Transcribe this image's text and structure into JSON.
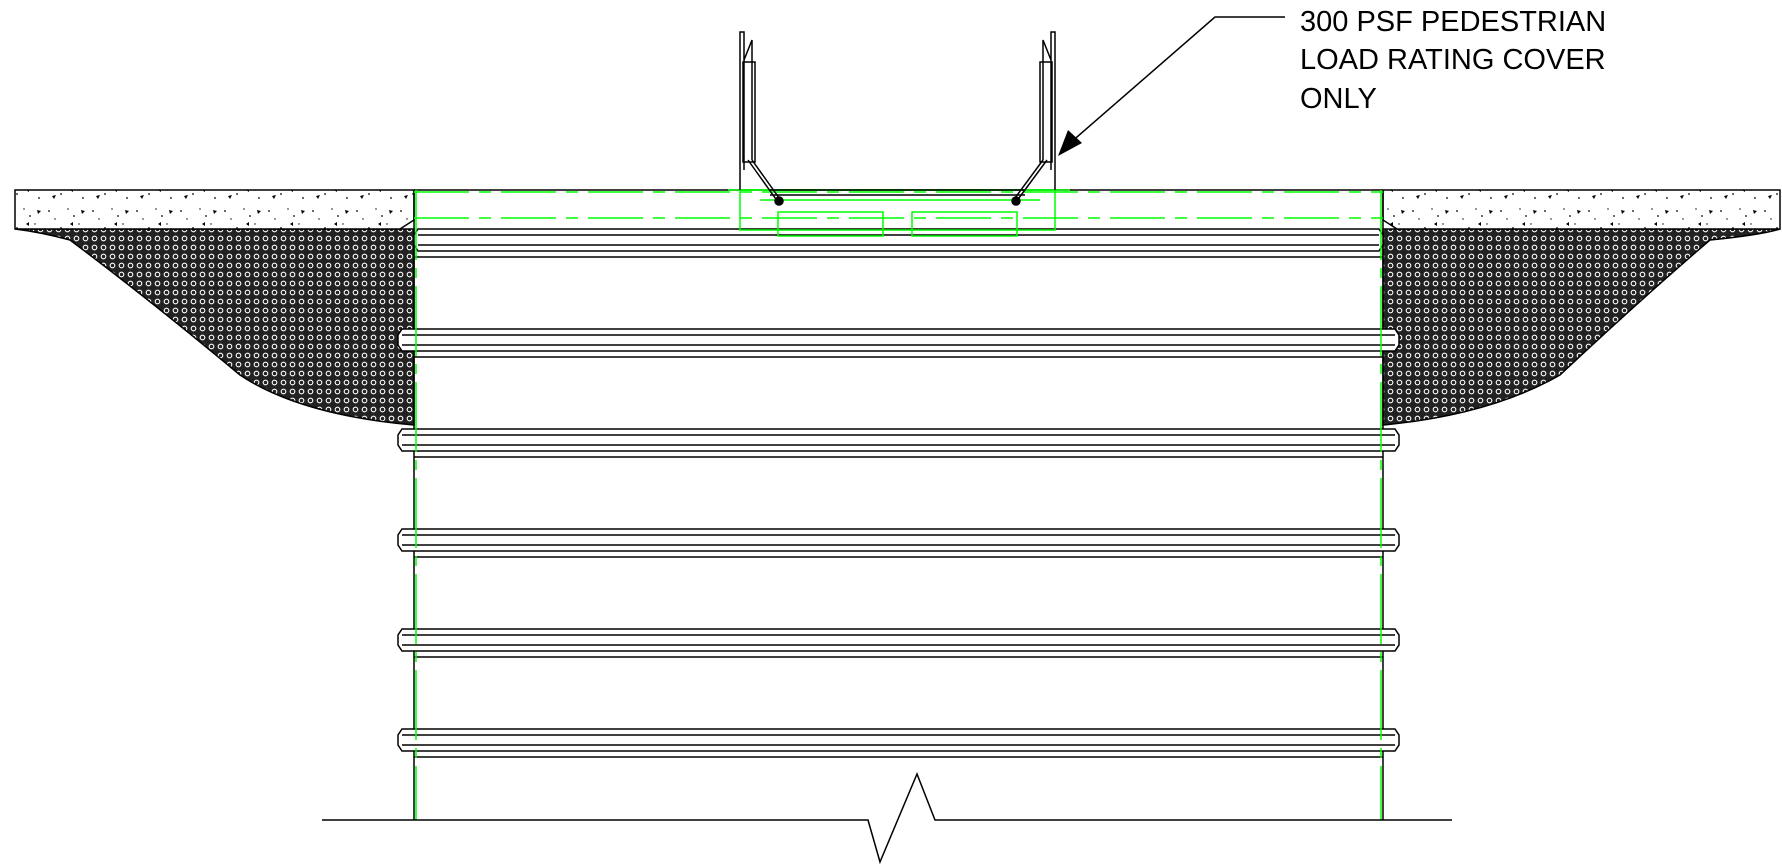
{
  "callout": {
    "lines": [
      "300 PSF PEDESTRIAN",
      "LOAD RATING COVER",
      "ONLY"
    ]
  },
  "colors": {
    "linework": "#000000",
    "cad_green": "#00ff00",
    "background": "#ffffff"
  }
}
